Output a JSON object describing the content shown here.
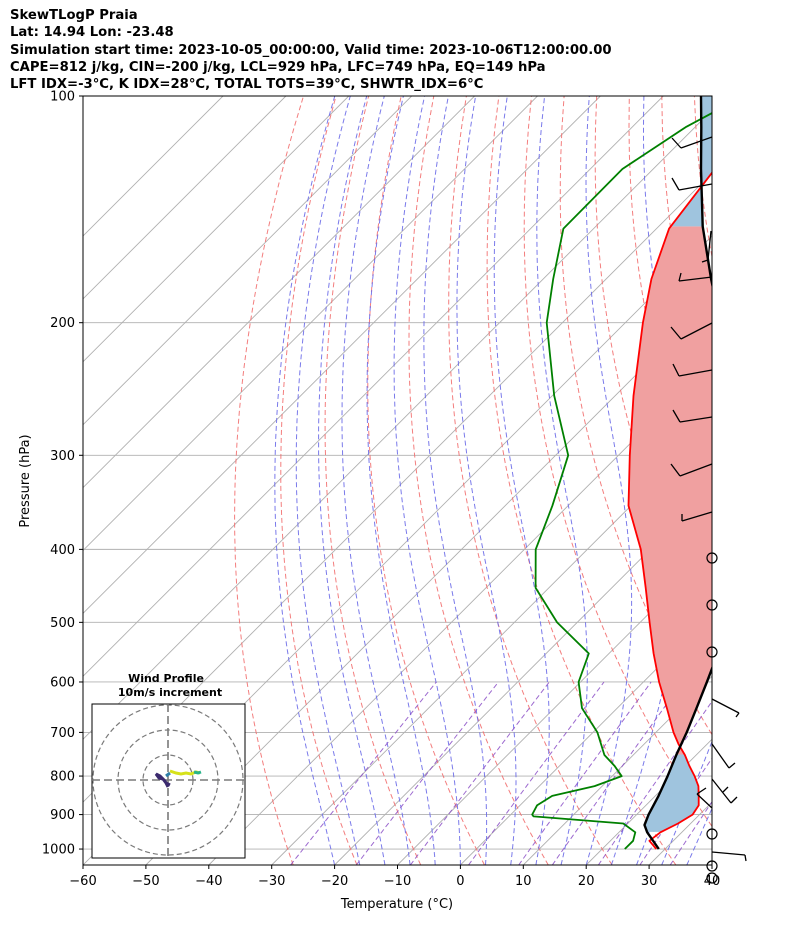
{
  "header": {
    "line1": "SkewTLogP Praia",
    "line2": "Lat: 14.94   Lon: -23.48",
    "line3": "Simulation start time: 2023-10-05_00:00:00, Valid time: 2023-10-06T12:00:00.00",
    "line4": "CAPE=812 j/kg, CIN=-200 j/kg, LCL=929 hPa, LFC=749 hPa, EQ=149 hPa",
    "line5": "LFT IDX=-3°C, K IDX=28°C, TOTAL TOTS=39°C, SHWTR_IDX=6°C"
  },
  "chart_data": {
    "type": "line",
    "xlabel": "Temperature (°C)",
    "ylabel": "Pressure (hPa)",
    "xlim": [
      -60,
      40
    ],
    "ylim": [
      1050,
      100
    ],
    "yscale": "log",
    "skew": "45deg",
    "x_ticks": [
      -60,
      -50,
      -40,
      -30,
      -20,
      -10,
      0,
      10,
      20,
      30,
      40
    ],
    "x_tick_labels": [
      "−60",
      "−50",
      "−40",
      "−30",
      "−20",
      "−10",
      "0",
      "10",
      "20",
      "30",
      "40"
    ],
    "y_ticks": [
      100,
      200,
      300,
      400,
      500,
      600,
      700,
      800,
      900,
      1000
    ],
    "y_tick_labels": [
      "100",
      "200",
      "300",
      "400",
      "500",
      "600",
      "700",
      "800",
      "900",
      "1000"
    ],
    "grid": true,
    "colors": {
      "temperature": "#ff0000",
      "dewpoint": "#008000",
      "parcel": "#000000",
      "cape_fill": "#f0a0a0",
      "cin_fill": "#9fc4de",
      "dry_adiabat": "#f27070",
      "moist_adiabat": "#6b6be8",
      "mixing_ratio": "#8b4fc7",
      "isotherm": "#b0b0b0"
    },
    "series": [
      {
        "key": "temperature",
        "points": [
          [
            1000,
            28.6
          ],
          [
            975,
            26.2
          ],
          [
            950,
            26.6
          ],
          [
            925,
            28.0
          ],
          [
            900,
            28.9
          ],
          [
            875,
            28.4
          ],
          [
            850,
            26.9
          ],
          [
            825,
            25.3
          ],
          [
            800,
            23.1
          ],
          [
            775,
            20.6
          ],
          [
            750,
            18.2
          ],
          [
            725,
            15.4
          ],
          [
            700,
            12.8
          ],
          [
            650,
            7.9
          ],
          [
            600,
            2.5
          ],
          [
            550,
            -2.9
          ],
          [
            500,
            -8.5
          ],
          [
            450,
            -14.6
          ],
          [
            400,
            -21.5
          ],
          [
            350,
            -30.4
          ],
          [
            300,
            -38.2
          ],
          [
            250,
            -47.1
          ],
          [
            200,
            -57.2
          ],
          [
            175,
            -62.8
          ],
          [
            150,
            -68.0
          ],
          [
            125,
            -70.2
          ],
          [
            110,
            -69.7
          ],
          [
            100,
            -68.8
          ]
        ]
      },
      {
        "key": "dewpoint",
        "points": [
          [
            1000,
            23.6
          ],
          [
            975,
            23.6
          ],
          [
            950,
            22.6
          ],
          [
            925,
            19.3
          ],
          [
            905,
            3.9
          ],
          [
            900,
            3.4
          ],
          [
            875,
            2.7
          ],
          [
            850,
            3.6
          ],
          [
            825,
            8.8
          ],
          [
            800,
            11.5
          ],
          [
            775,
            8.7
          ],
          [
            750,
            5.4
          ],
          [
            700,
            0.7
          ],
          [
            650,
            -5.6
          ],
          [
            600,
            -10.3
          ],
          [
            550,
            -13.2
          ],
          [
            500,
            -23.2
          ],
          [
            450,
            -32.1
          ],
          [
            400,
            -38.2
          ],
          [
            350,
            -42.5
          ],
          [
            300,
            -48.0
          ],
          [
            250,
            -59.7
          ],
          [
            200,
            -72.5
          ],
          [
            175,
            -78.4
          ],
          [
            150,
            -84.8
          ],
          [
            125,
            -84.9
          ],
          [
            110,
            -81.5
          ],
          [
            100,
            -77.2
          ]
        ]
      },
      {
        "key": "parcel",
        "points": [
          [
            1000,
            29.0
          ],
          [
            950,
            24.5
          ],
          [
            929,
            22.9
          ],
          [
            900,
            21.9
          ],
          [
            850,
            20.5
          ],
          [
            800,
            18.8
          ],
          [
            749,
            16.8
          ],
          [
            700,
            14.9
          ],
          [
            650,
            12.6
          ],
          [
            600,
            10.1
          ],
          [
            550,
            7.3
          ],
          [
            500,
            3.9
          ],
          [
            450,
            -0.2
          ],
          [
            400,
            -5.5
          ],
          [
            350,
            -12.0
          ],
          [
            300,
            -20.4
          ],
          [
            250,
            -31.0
          ],
          [
            200,
            -44.9
          ],
          [
            175,
            -53.3
          ],
          [
            149,
            -63.0
          ],
          [
            125,
            -72.4
          ],
          [
            110,
            -79.0
          ],
          [
            100,
            -84.0
          ]
        ]
      }
    ],
    "inset": {
      "title": "Wind Profile",
      "subtitle": "10m/s increment"
    }
  }
}
